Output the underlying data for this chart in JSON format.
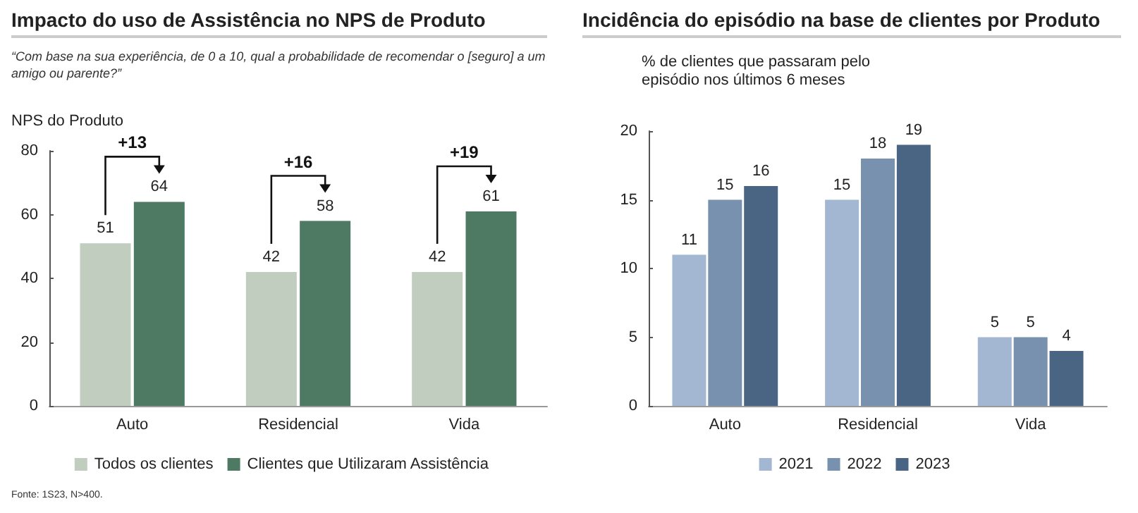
{
  "chart_data": [
    {
      "type": "bar",
      "title": "Impacto do uso de Assistência no NPS de Produto",
      "subtitle": "“Com base na sua experiência, de 0 a 10, qual a probabilidade de recomendar o [seguro] a um amigo ou parente?”",
      "ylabel": "NPS do Produto",
      "categories": [
        "Auto",
        "Residencial",
        "Vida"
      ],
      "series": [
        {
          "name": "Todos os clientes",
          "color": "#c0cdbf",
          "values": [
            51,
            42,
            42
          ]
        },
        {
          "name": "Clientes que Utilizaram Assistência",
          "color": "#4e7a64",
          "values": [
            64,
            58,
            61
          ]
        }
      ],
      "ylim": [
        0,
        80
      ],
      "yticks": [
        0,
        20,
        40,
        60,
        80
      ],
      "legend": "bottom",
      "data_labels": true,
      "annotations": [
        "+13",
        "+16",
        "+19",
        "Fonte: 1S23, N>400."
      ]
    },
    {
      "type": "bar",
      "title": "Incidência do episódio na base de clientes por Produto",
      "ylabel": "% de clientes que passaram pelo episódio nos últimos 6 meses",
      "categories": [
        "Auto",
        "Residencial",
        "Vida"
      ],
      "series": [
        {
          "name": "2021",
          "color": "#a3b7d2",
          "values": [
            11,
            15,
            5
          ]
        },
        {
          "name": "2022",
          "color": "#7891ae",
          "values": [
            15,
            18,
            5
          ]
        },
        {
          "name": "2023",
          "color": "#4a6584",
          "values": [
            16,
            19,
            4
          ]
        }
      ],
      "ylim": [
        0,
        20
      ],
      "yticks": [
        0,
        5,
        10,
        15,
        20
      ],
      "legend": "bottom",
      "data_labels": true
    }
  ]
}
